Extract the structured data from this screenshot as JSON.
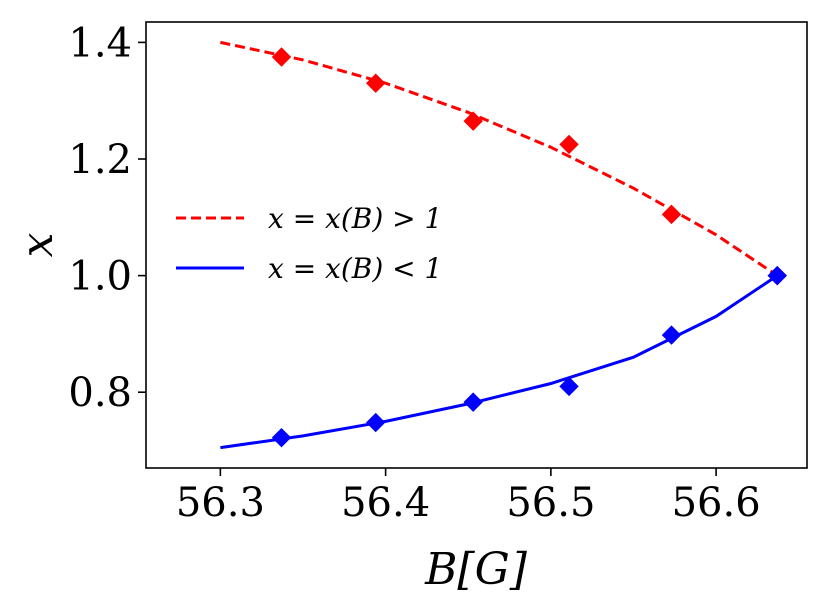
{
  "chart_data": {
    "type": "line",
    "xlabel": "B[G]",
    "ylabel": "x",
    "xlim": [
      56.255,
      56.655
    ],
    "ylim": [
      0.67,
      1.435
    ],
    "x_ticks": [
      "56.3",
      "56.4",
      "56.5",
      "56.6"
    ],
    "y_ticks": [
      "0.8",
      "1.0",
      "1.2",
      "1.4"
    ],
    "legend_position": "center-left",
    "series": [
      {
        "name": "x = x(B) > 1",
        "style": "dashed",
        "color": "#ff0000",
        "line_x": [
          56.3,
          56.35,
          56.4,
          56.45,
          56.5,
          56.55,
          56.6,
          56.637
        ],
        "line_y": [
          1.4,
          1.37,
          1.33,
          1.28,
          1.22,
          1.15,
          1.07,
          1.0
        ],
        "points_x": [
          56.337,
          56.394,
          56.453,
          56.511,
          56.573,
          56.637
        ],
        "points_y": [
          1.375,
          1.33,
          1.265,
          1.225,
          1.105,
          1.0
        ]
      },
      {
        "name": "x = x(B) < 1",
        "style": "solid",
        "color": "#0000ff",
        "line_x": [
          56.3,
          56.35,
          56.4,
          56.45,
          56.5,
          56.55,
          56.6,
          56.637
        ],
        "line_y": [
          0.705,
          0.725,
          0.75,
          0.78,
          0.815,
          0.86,
          0.93,
          1.0
        ],
        "points_x": [
          56.337,
          56.394,
          56.453,
          56.511,
          56.573,
          56.637
        ],
        "points_y": [
          0.722,
          0.748,
          0.783,
          0.81,
          0.898,
          1.0
        ]
      }
    ]
  }
}
